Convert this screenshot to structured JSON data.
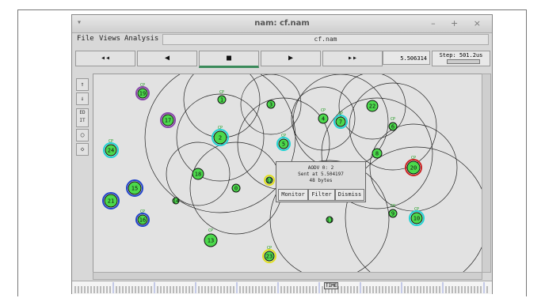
{
  "window": {
    "title": "nam: cf.nam",
    "menu_glyph": "▾",
    "controls_glyphs": "– + ×"
  },
  "menu": {
    "file": "File",
    "views": "Views",
    "analysis": "Analysis",
    "filename": "cf.nam"
  },
  "playback": {
    "rewind": "◂◂",
    "back": "◀",
    "stop": "■",
    "play": "▶",
    "forward": "▸▸",
    "time": "5.506314",
    "step": "Step: 501.2us"
  },
  "tools": {
    "zoom_in": "⇑",
    "zoom_out": "⇓",
    "edit": "ED IT",
    "node_tool": "○",
    "link_tool": "◇"
  },
  "popup": {
    "line1": "AODV 0: 2",
    "line2": "Sent at 5.504197",
    "line3": "48 bytes",
    "monitor": "Monitor",
    "filter": "Filter",
    "dismiss": "Dismiss"
  },
  "timeline": {
    "marker": "TIME"
  },
  "nodes": [
    {
      "id": "19",
      "label": "CP"
    },
    {
      "id": "1",
      "label": "CP"
    },
    {
      "id": "3",
      "label": ""
    },
    {
      "id": "22",
      "label": ""
    },
    {
      "id": "17",
      "label": ""
    },
    {
      "id": "2",
      "label": "CP"
    },
    {
      "id": "5",
      "label": "CP"
    },
    {
      "id": "4",
      "label": "CP"
    },
    {
      "id": "7",
      "label": "CP"
    },
    {
      "id": "6",
      "label": "CP"
    },
    {
      "id": "24",
      "label": "CP"
    },
    {
      "id": "8",
      "label": ""
    },
    {
      "id": "20",
      "label": "CP"
    },
    {
      "id": "18",
      "label": ""
    },
    {
      "id": "0",
      "label": ""
    },
    {
      "id": "15",
      "label": ""
    },
    {
      "id": "21",
      "label": ""
    },
    {
      "id": "14",
      "label": ""
    },
    {
      "id": "16",
      "label": "CP"
    },
    {
      "id": "11",
      "label": ""
    },
    {
      "id": "9",
      "label": "CP"
    },
    {
      "id": "10",
      "label": "CP"
    },
    {
      "id": "13",
      "label": "CP"
    },
    {
      "id": "23",
      "label": "CP"
    },
    {
      "id": "12",
      "label": ""
    }
  ],
  "colors": {
    "node_fill": "#4cd94c",
    "node_ring_cyan": "#22d4d4",
    "node_ring_blue": "#2244cc",
    "node_ring_purple": "#8844aa",
    "node_ring_red": "#cc2222",
    "node_ring_yellow": "#e0e020",
    "range_circle": "#222222"
  }
}
